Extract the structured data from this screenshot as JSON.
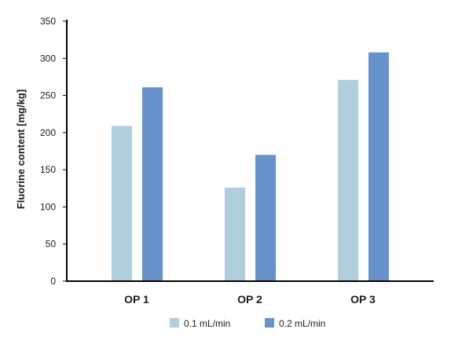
{
  "chart_data": {
    "type": "bar",
    "title": "",
    "xlabel": "",
    "ylabel": "Fluorine content [mg/kg]",
    "categories": [
      "OP 1",
      "OP 2",
      "OP 3"
    ],
    "series": [
      {
        "name": "0.1 mL/min",
        "color": "#aecfdb",
        "values": [
          209,
          126,
          271
        ]
      },
      {
        "name": "0.2 mL/min",
        "color": "#6892cc",
        "values": [
          261,
          170,
          308
        ]
      }
    ],
    "ylim": [
      0,
      350
    ],
    "yticks": [
      0,
      50,
      100,
      150,
      200,
      250,
      300,
      350
    ],
    "grid": false,
    "legend_position": "bottom-center"
  }
}
